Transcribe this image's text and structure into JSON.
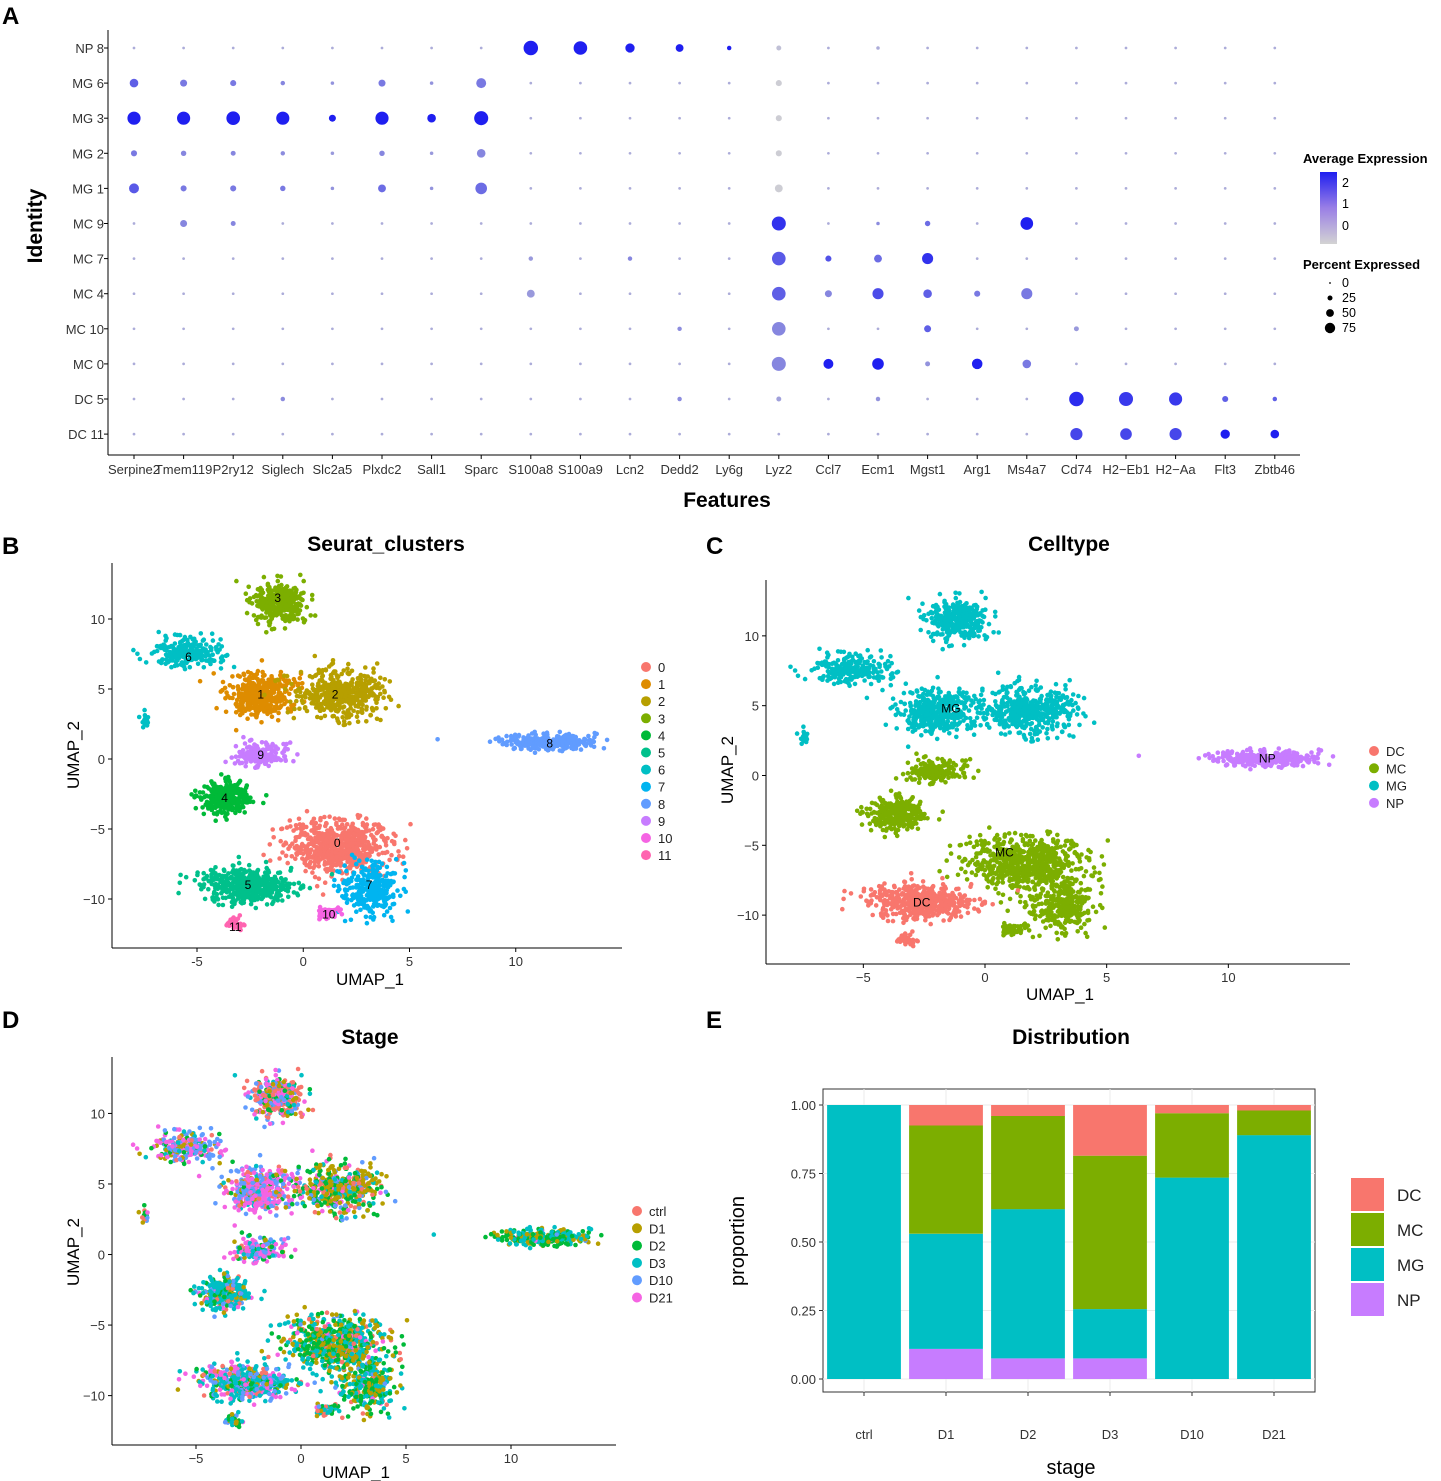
{
  "panels": {
    "A": {
      "letter": "A"
    },
    "B": {
      "letter": "B",
      "title": "Seurat_clusters"
    },
    "C": {
      "letter": "C",
      "title": "Celltype"
    },
    "D": {
      "letter": "D",
      "title": "Stage"
    },
    "E": {
      "letter": "E",
      "title": "Distribution"
    }
  },
  "colors": {
    "dot_low": "#d3d3d3",
    "dot_high": "#1f1ff0",
    "DC": "#f8766d",
    "MC": "#7cae00",
    "MG": "#00bfc4",
    "NP": "#c77cff",
    "clusters": [
      "#f8766d",
      "#de8c00",
      "#b79f00",
      "#7cae00",
      "#00ba38",
      "#00c08b",
      "#00bfc4",
      "#00b4f0",
      "#619cff",
      "#c77cff",
      "#f564e3",
      "#ff64b0"
    ],
    "stages": [
      "#f8766d",
      "#b79f00",
      "#00ba38",
      "#00bfc4",
      "#619cff",
      "#f564e3"
    ]
  },
  "chart_data": [
    {
      "type": "dotplot",
      "xlabel": "Features",
      "ylabel": "Identity",
      "features": [
        "Serpine2",
        "Tmem119",
        "P2ry12",
        "Siglech",
        "Slc2a5",
        "Plxdc2",
        "Sall1",
        "Sparc",
        "S100a8",
        "S100a9",
        "Lcn2",
        "Dedd2",
        "Ly6g",
        "Lyz2",
        "Ccl7",
        "Ecm1",
        "Mgst1",
        "Arg1",
        "Ms4a7",
        "Cd74",
        "H2−Eb1",
        "H2−Aa",
        "Flt3",
        "Zbtb46"
      ],
      "identities": [
        "NP 8",
        "MG 6",
        "MG 3",
        "MG 2",
        "MG 1",
        "MC 9",
        "MC 7",
        "MC 4",
        "MC 10",
        "MC 0",
        "DC 5",
        "DC 11"
      ],
      "legend": {
        "expression_title": "Average Expression",
        "expression_ticks": [
          "2",
          "1",
          "0"
        ],
        "percent_title": "Percent Expressed",
        "percent_ticks": [
          "0",
          "25",
          "50",
          "75"
        ]
      },
      "percent_expressed": [
        [
          3,
          3,
          3,
          3,
          3,
          3,
          3,
          3,
          85,
          75,
          35,
          25,
          8,
          10,
          3,
          5,
          3,
          3,
          3,
          3,
          3,
          3,
          3,
          3
        ],
        [
          30,
          20,
          15,
          8,
          5,
          20,
          5,
          40,
          3,
          3,
          3,
          3,
          3,
          15,
          3,
          3,
          3,
          3,
          3,
          3,
          3,
          3,
          3,
          3
        ],
        [
          70,
          70,
          75,
          70,
          20,
          70,
          30,
          80,
          3,
          3,
          3,
          3,
          3,
          15,
          3,
          3,
          3,
          3,
          3,
          3,
          3,
          3,
          3,
          3
        ],
        [
          15,
          12,
          10,
          8,
          5,
          12,
          5,
          30,
          3,
          3,
          3,
          3,
          3,
          15,
          3,
          3,
          3,
          3,
          3,
          3,
          3,
          3,
          3,
          3
        ],
        [
          40,
          15,
          15,
          12,
          5,
          25,
          5,
          55,
          3,
          3,
          3,
          3,
          3,
          25,
          3,
          3,
          3,
          3,
          3,
          3,
          3,
          3,
          3,
          3
        ],
        [
          3,
          20,
          10,
          3,
          3,
          3,
          3,
          3,
          3,
          3,
          3,
          3,
          3,
          80,
          3,
          5,
          12,
          3,
          65,
          3,
          3,
          3,
          3,
          3
        ],
        [
          3,
          3,
          3,
          3,
          3,
          3,
          3,
          3,
          8,
          3,
          8,
          3,
          3,
          75,
          15,
          25,
          50,
          3,
          3,
          3,
          3,
          3,
          3,
          3
        ],
        [
          3,
          3,
          3,
          3,
          3,
          3,
          3,
          3,
          25,
          3,
          3,
          3,
          3,
          75,
          20,
          50,
          30,
          15,
          50,
          3,
          3,
          3,
          3,
          3
        ],
        [
          3,
          3,
          3,
          3,
          3,
          3,
          3,
          3,
          3,
          3,
          3,
          8,
          3,
          75,
          3,
          3,
          20,
          3,
          3,
          10,
          3,
          3,
          3,
          3
        ],
        [
          3,
          3,
          3,
          3,
          3,
          3,
          3,
          3,
          3,
          3,
          3,
          3,
          3,
          80,
          40,
          55,
          10,
          45,
          30,
          3,
          3,
          3,
          3,
          3
        ],
        [
          3,
          3,
          3,
          8,
          3,
          3,
          3,
          3,
          3,
          3,
          3,
          8,
          3,
          10,
          3,
          8,
          3,
          3,
          3,
          85,
          80,
          70,
          15,
          8
        ],
        [
          3,
          3,
          3,
          3,
          3,
          3,
          3,
          3,
          3,
          3,
          3,
          3,
          3,
          3,
          3,
          3,
          3,
          3,
          3,
          60,
          55,
          60,
          35,
          30
        ]
      ],
      "average_expression": [
        [
          0,
          0,
          0,
          0,
          0,
          0,
          0,
          0,
          2.2,
          2.2,
          2.2,
          2.2,
          2.2,
          -0.3,
          0,
          0,
          0,
          0,
          0,
          0,
          0,
          0,
          0,
          0
        ],
        [
          1.2,
          0.8,
          0.8,
          0.6,
          0.4,
          0.8,
          0.4,
          0.8,
          0,
          0,
          0,
          0,
          0,
          -0.5,
          0,
          0,
          0,
          0,
          0,
          0,
          0,
          0,
          0,
          0
        ],
        [
          2.2,
          2.2,
          2.2,
          2.2,
          2.2,
          2.2,
          2.2,
          2.2,
          0,
          0,
          0,
          0,
          0,
          -0.5,
          0,
          0,
          0,
          0,
          0,
          0,
          0,
          0,
          0,
          0
        ],
        [
          0.8,
          0.6,
          0.6,
          0.5,
          0.3,
          0.6,
          0.3,
          0.6,
          0,
          0,
          0,
          0,
          0,
          -0.5,
          0,
          0,
          0,
          0,
          0,
          0,
          0,
          0,
          0,
          0
        ],
        [
          1.3,
          0.8,
          0.8,
          0.8,
          0.4,
          1,
          0.4,
          1,
          0,
          0,
          0,
          0,
          0,
          -0.5,
          0,
          0,
          0,
          0,
          0,
          0,
          0,
          0,
          0,
          0
        ],
        [
          0,
          0.6,
          0.6,
          0,
          0,
          0,
          0,
          0,
          0,
          0,
          0,
          0,
          0,
          1.9,
          0,
          0.5,
          1,
          0,
          2.2,
          0,
          0,
          0,
          0,
          0
        ],
        [
          0,
          0,
          0,
          0,
          0,
          0,
          0,
          0,
          0.3,
          0,
          0.6,
          0,
          0,
          1.3,
          1.4,
          1,
          1.9,
          0,
          0,
          0,
          0,
          0,
          0,
          0
        ],
        [
          0,
          0,
          0,
          0,
          0,
          0,
          0,
          0,
          0.3,
          0,
          0,
          0,
          0,
          1.2,
          0.6,
          1.5,
          1.2,
          0.8,
          0.8,
          0,
          0,
          0,
          0,
          0
        ],
        [
          0,
          0,
          0,
          0,
          0,
          0,
          0,
          0,
          0,
          0,
          0,
          0.5,
          0,
          0.6,
          0,
          0,
          1.2,
          0,
          0,
          0.3,
          0,
          0,
          0,
          0
        ],
        [
          0,
          0,
          0,
          0,
          0,
          0,
          0,
          0,
          0,
          0,
          0,
          0,
          0,
          0.6,
          2.2,
          2.2,
          0.4,
          2.2,
          0.8,
          0,
          0,
          0,
          0,
          0
        ],
        [
          0,
          0,
          0,
          0.5,
          0,
          0,
          0,
          0,
          0,
          0,
          0,
          0.5,
          0,
          0.2,
          0,
          0.4,
          0,
          0,
          0,
          2,
          1.8,
          1.8,
          1.2,
          1.2
        ],
        [
          0,
          0,
          0,
          0,
          0,
          0,
          0,
          0,
          0,
          0,
          0,
          0,
          0,
          0,
          0,
          0,
          0,
          0,
          0,
          1.6,
          1.6,
          1.6,
          2.2,
          2.2
        ]
      ]
    },
    {
      "type": "scatter",
      "title": "Seurat_clusters",
      "xlabel": "UMAP_1",
      "ylabel": "UMAP_2",
      "xticks": [
        "-5",
        "0",
        "5",
        "10"
      ],
      "yticks": [
        "10",
        "5",
        "0",
        "−5",
        "−10"
      ],
      "xlim": [
        -9,
        15
      ],
      "ylim": [
        -13.5,
        14
      ],
      "legend": [
        "0",
        "1",
        "2",
        "3",
        "4",
        "5",
        "6",
        "7",
        "8",
        "9",
        "10",
        "11"
      ],
      "cluster_labels": [
        {
          "label": "0",
          "x": 1.6,
          "y": -6
        },
        {
          "label": "1",
          "x": -2,
          "y": 4.6
        },
        {
          "label": "2",
          "x": 1.5,
          "y": 4.6
        },
        {
          "label": "3",
          "x": -1.2,
          "y": 11.5
        },
        {
          "label": "4",
          "x": -3.7,
          "y": -2.8
        },
        {
          "label": "5",
          "x": -2.6,
          "y": -9
        },
        {
          "label": "6",
          "x": -5.4,
          "y": 7.3
        },
        {
          "label": "7",
          "x": 3.1,
          "y": -9
        },
        {
          "label": "8",
          "x": 11.6,
          "y": 1.1
        },
        {
          "label": "9",
          "x": -2,
          "y": 0.3
        },
        {
          "label": "10",
          "x": 1.2,
          "y": -11.1
        },
        {
          "label": "11",
          "x": -3.2,
          "y": -12
        }
      ]
    },
    {
      "type": "scatter",
      "title": "Celltype",
      "xlabel": "UMAP_1",
      "ylabel": "UMAP_2",
      "xticks": [
        "−5",
        "0",
        "5",
        "10"
      ],
      "yticks": [
        "10",
        "5",
        "0",
        "−5",
        "−10"
      ],
      "xlim": [
        -9,
        15
      ],
      "ylim": [
        -13.5,
        14
      ],
      "legend": [
        "DC",
        "MC",
        "MG",
        "NP"
      ],
      "cluster_labels": [
        {
          "label": "MG",
          "x": -1.4,
          "y": 4.8
        },
        {
          "label": "MC",
          "x": 0.8,
          "y": -5.5
        },
        {
          "label": "DC",
          "x": -2.6,
          "y": -9.1
        },
        {
          "label": "NP",
          "x": 11.6,
          "y": 1.2
        }
      ]
    },
    {
      "type": "scatter",
      "title": "Stage",
      "xlabel": "UMAP_1",
      "ylabel": "UMAP_2",
      "xticks": [
        "−5",
        "0",
        "5",
        "10"
      ],
      "yticks": [
        "10",
        "5",
        "0",
        "−5",
        "−10"
      ],
      "xlim": [
        -9,
        15
      ],
      "ylim": [
        -13.5,
        14
      ],
      "legend": [
        "ctrl",
        "D1",
        "D2",
        "D3",
        "D10",
        "D21"
      ]
    },
    {
      "type": "bar",
      "stacked": true,
      "title": "Distribution",
      "xlabel": "stage",
      "ylabel": "proportion",
      "categories": [
        "ctrl",
        "D1",
        "D2",
        "D3",
        "D10",
        "D21"
      ],
      "yticks": [
        "1.00",
        "0.75",
        "0.50",
        "0.25",
        "0.00"
      ],
      "ylim": [
        0,
        1
      ],
      "series": [
        {
          "name": "NP",
          "values": [
            0,
            0.11,
            0.075,
            0.075,
            0,
            0
          ]
        },
        {
          "name": "MG",
          "values": [
            1,
            0.42,
            0.545,
            0.18,
            0.735,
            0.89
          ]
        },
        {
          "name": "MC",
          "values": [
            0,
            0.395,
            0.34,
            0.56,
            0.235,
            0.09
          ]
        },
        {
          "name": "DC",
          "values": [
            0,
            0.075,
            0.04,
            0.185,
            0.03,
            0.02
          ]
        }
      ],
      "legend": [
        "DC",
        "MC",
        "MG",
        "NP"
      ]
    }
  ]
}
